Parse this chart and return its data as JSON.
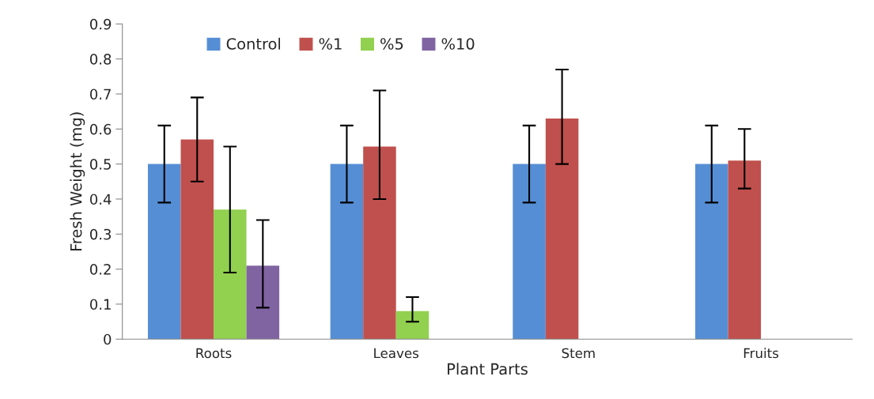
{
  "chart_data": {
    "type": "bar",
    "xlabel": "Plant Parts",
    "ylabel": "Fresh Weight (mg)",
    "categories": [
      "Roots",
      "Leaves",
      "Stem",
      "Fruits"
    ],
    "series": [
      {
        "name": "Control",
        "color": "#558ed5",
        "values": [
          0.5,
          0.5,
          0.5,
          0.5
        ],
        "errors": [
          [
            0.39,
            0.61
          ],
          [
            0.39,
            0.61
          ],
          [
            0.39,
            0.61
          ],
          [
            0.39,
            0.61
          ]
        ]
      },
      {
        "name": "%1",
        "color": "#c0504d",
        "values": [
          0.57,
          0.55,
          0.63,
          0.51
        ],
        "errors": [
          [
            0.45,
            0.69
          ],
          [
            0.4,
            0.71
          ],
          [
            0.5,
            0.77
          ],
          [
            0.43,
            0.6
          ]
        ]
      },
      {
        "name": "%5",
        "color": "#92d050",
        "values": [
          0.37,
          0.08,
          null,
          null
        ],
        "errors": [
          [
            0.19,
            0.55
          ],
          [
            0.05,
            0.12
          ],
          null,
          null
        ]
      },
      {
        "name": "%10",
        "color": "#8064a2",
        "values": [
          0.21,
          null,
          null,
          null
        ],
        "errors": [
          [
            0.09,
            0.34
          ],
          null,
          null,
          null
        ]
      }
    ],
    "ylim": [
      0,
      0.9
    ],
    "yticks": [
      0,
      0.1,
      0.2,
      0.3,
      0.4,
      0.5,
      0.6,
      0.7,
      0.8,
      0.9
    ],
    "grid": false,
    "legend": "top"
  }
}
